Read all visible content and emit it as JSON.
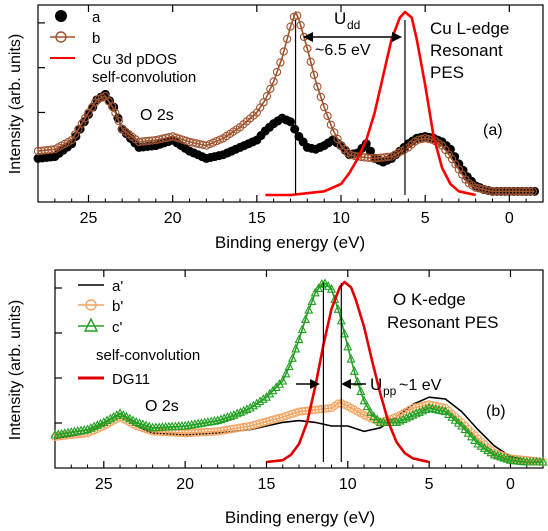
{
  "chart_data": [
    {
      "type": "line",
      "panel_label": "(a)",
      "xlabel": "Binding energy (eV)",
      "ylabel": "Intensity (arb. units)",
      "xlim": [
        28,
        -2
      ],
      "ylim": [
        0,
        1
      ],
      "x_ticks": [
        25,
        20,
        15,
        10,
        5,
        0
      ],
      "legend_position": "top-left",
      "legend": [
        "a",
        "b",
        "Cu 3d pDOS",
        "self-convolution"
      ],
      "annotations": {
        "title_lines": [
          "Cu L-edge",
          "Resonant",
          "PES"
        ],
        "o2s": "O 2s",
        "u_main": "U",
        "u_sub": "dd",
        "u_value": "~6.5 eV",
        "vlines": [
          12.7,
          6.2
        ]
      },
      "series": [
        {
          "name": "a",
          "marker": "filled-circle",
          "color": "#000000",
          "x": [
            28,
            27,
            26,
            25,
            24.5,
            24,
            23.5,
            23,
            22,
            21,
            20,
            19,
            18,
            17,
            16,
            15,
            14.5,
            14,
            13.5,
            13,
            12.5,
            12,
            11.5,
            11,
            10.5,
            10,
            9.5,
            9,
            8.5,
            8,
            7.5,
            7,
            6.5,
            6,
            5.5,
            5,
            4.5,
            4,
            3.5,
            3,
            2.5,
            2,
            1.5,
            1,
            0,
            -1,
            -1.5
          ],
          "y": [
            0.2,
            0.21,
            0.28,
            0.44,
            0.52,
            0.55,
            0.48,
            0.36,
            0.26,
            0.27,
            0.3,
            0.24,
            0.2,
            0.22,
            0.26,
            0.3,
            0.35,
            0.39,
            0.42,
            0.4,
            0.32,
            0.26,
            0.25,
            0.27,
            0.3,
            0.27,
            0.22,
            0.23,
            0.28,
            0.2,
            0.18,
            0.2,
            0.24,
            0.28,
            0.31,
            0.32,
            0.31,
            0.29,
            0.25,
            0.17,
            0.1,
            0.05,
            0.03,
            0.02,
            0.02,
            0.02,
            0.02
          ]
        },
        {
          "name": "b",
          "marker": "open-circle",
          "color": "#a0522d",
          "x": [
            28,
            27,
            26,
            25,
            24.5,
            24,
            23.5,
            23,
            22,
            21,
            20,
            19,
            18,
            17,
            16,
            15,
            14.5,
            14,
            13.5,
            13,
            12.7,
            12.5,
            12,
            11.5,
            11,
            10.5,
            10,
            9.5,
            9,
            8,
            7,
            6,
            5.5,
            5,
            4.5,
            4,
            3.5,
            3,
            2.5,
            2,
            1.5,
            1,
            0,
            -1,
            -1.5
          ],
          "y": [
            0.24,
            0.25,
            0.3,
            0.45,
            0.52,
            0.54,
            0.47,
            0.36,
            0.29,
            0.3,
            0.32,
            0.29,
            0.27,
            0.31,
            0.37,
            0.45,
            0.52,
            0.62,
            0.75,
            0.92,
            1.0,
            0.96,
            0.8,
            0.62,
            0.48,
            0.36,
            0.27,
            0.22,
            0.21,
            0.2,
            0.21,
            0.26,
            0.3,
            0.31,
            0.3,
            0.27,
            0.21,
            0.14,
            0.07,
            0.04,
            0.03,
            0.02,
            0.02,
            0.02,
            0.02
          ]
        },
        {
          "name": "Cu 3d pDOS self-convolution",
          "marker": "none",
          "color": "#ff0000",
          "x": [
            14.5,
            13,
            12,
            11,
            10,
            9.5,
            9,
            8.5,
            8,
            7.5,
            7,
            6.5,
            6.2,
            5.8,
            5.5,
            5,
            4.5,
            4,
            3.5,
            3,
            2.5,
            2
          ],
          "y": [
            0.0,
            0.0,
            0.01,
            0.02,
            0.06,
            0.12,
            0.2,
            0.3,
            0.45,
            0.65,
            0.85,
            0.97,
            1.0,
            0.97,
            0.85,
            0.6,
            0.32,
            0.15,
            0.06,
            0.02,
            0.01,
            0.0
          ]
        }
      ]
    },
    {
      "type": "line",
      "panel_label": "(b)",
      "xlabel": "Binding energy (eV)",
      "ylabel": "Intensity (arb. units)",
      "xlim": [
        28,
        -2
      ],
      "ylim": [
        0,
        1
      ],
      "x_ticks": [
        25,
        20,
        15,
        10,
        5,
        0
      ],
      "legend_position": "top-left",
      "legend": [
        "a'",
        "b'",
        "c'",
        "self-convolution",
        "DG11"
      ],
      "annotations": {
        "title_lines": [
          "O K-edge",
          "Resonant PES"
        ],
        "o2s": "O 2s",
        "u_main": "U",
        "u_sub": "pp",
        "u_value": "~1 eV",
        "vlines": [
          11.5,
          10.4
        ]
      },
      "series": [
        {
          "name": "a'",
          "marker": "none",
          "color": "#000000",
          "x": [
            28,
            26,
            25,
            24,
            23,
            22,
            20,
            18,
            16,
            14,
            13,
            12,
            11,
            10,
            9,
            8,
            7,
            6,
            5,
            4,
            3,
            2,
            1,
            0,
            -1,
            -2
          ],
          "y": [
            0.13,
            0.16,
            0.21,
            0.27,
            0.2,
            0.16,
            0.15,
            0.16,
            0.18,
            0.22,
            0.23,
            0.22,
            0.2,
            0.2,
            0.17,
            0.19,
            0.25,
            0.32,
            0.36,
            0.35,
            0.28,
            0.18,
            0.09,
            0.03,
            0.01,
            0.0
          ]
        },
        {
          "name": "b'",
          "marker": "open-circle",
          "color": "#f4a460",
          "x": [
            28,
            26,
            25,
            24,
            23,
            22,
            20,
            18,
            16,
            14,
            13,
            12,
            11,
            10.5,
            10,
            9,
            8,
            7,
            6,
            5,
            4,
            3,
            2,
            1,
            0,
            -1,
            -2
          ],
          "y": [
            0.14,
            0.16,
            0.2,
            0.25,
            0.2,
            0.17,
            0.16,
            0.17,
            0.2,
            0.25,
            0.28,
            0.29,
            0.3,
            0.33,
            0.31,
            0.26,
            0.22,
            0.25,
            0.3,
            0.32,
            0.3,
            0.22,
            0.13,
            0.05,
            0.02,
            0.01,
            0.0
          ]
        },
        {
          "name": "c'",
          "marker": "open-triangle",
          "color": "#22a022",
          "x": [
            28,
            26,
            25,
            24,
            23,
            22,
            20,
            18,
            17,
            16,
            15,
            14,
            13.5,
            13,
            12.5,
            12,
            11.5,
            11,
            10.5,
            10,
            9.5,
            9,
            8.5,
            8,
            7,
            6,
            5,
            4,
            3,
            2,
            1,
            0,
            -1,
            -2
          ],
          "y": [
            0.15,
            0.18,
            0.22,
            0.27,
            0.22,
            0.19,
            0.2,
            0.23,
            0.26,
            0.3,
            0.36,
            0.45,
            0.55,
            0.68,
            0.82,
            0.94,
            1.0,
            0.96,
            0.82,
            0.64,
            0.47,
            0.34,
            0.26,
            0.22,
            0.22,
            0.26,
            0.3,
            0.28,
            0.2,
            0.1,
            0.04,
            0.01,
            0.0,
            0.0
          ]
        },
        {
          "name": "DG11",
          "marker": "none",
          "color": "#e00000",
          "x": [
            15,
            14,
            13.5,
            13,
            12.5,
            12,
            11.5,
            11,
            10.5,
            10.2,
            9.8,
            9.5,
            9,
            8.5,
            8,
            7.5,
            7,
            6.5,
            6,
            5.5,
            5
          ],
          "y": [
            0.0,
            0.01,
            0.04,
            0.1,
            0.22,
            0.42,
            0.65,
            0.85,
            0.97,
            1.0,
            0.97,
            0.9,
            0.75,
            0.56,
            0.38,
            0.22,
            0.11,
            0.05,
            0.02,
            0.01,
            0.0
          ]
        }
      ]
    }
  ]
}
